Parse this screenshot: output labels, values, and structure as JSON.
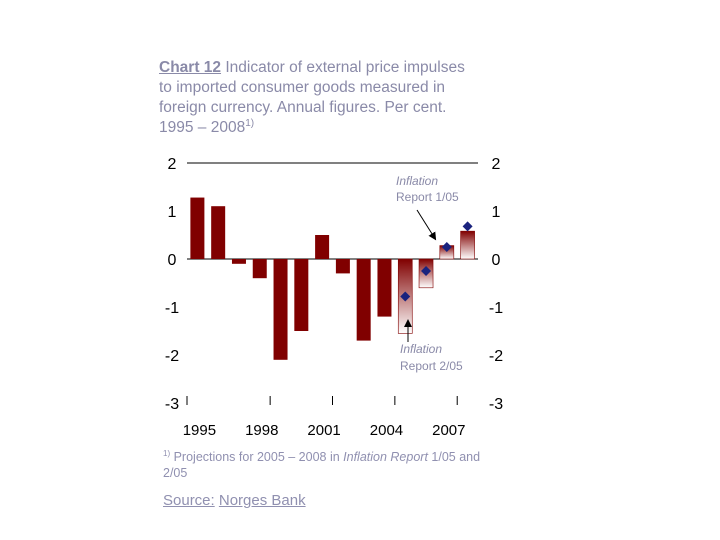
{
  "chart_data": {
    "type": "bar",
    "title_number": "Chart 12",
    "title": "Indicator of external price impulses to imported consumer goods measured in foreign currency. Annual figures. Per cent. 1995 – 2008",
    "title_footnote_mark": "1)",
    "years": [
      1995,
      1996,
      1997,
      1998,
      1999,
      2000,
      2001,
      2002,
      2003,
      2004,
      2005,
      2006,
      2007,
      2008
    ],
    "values": [
      1.28,
      1.1,
      -0.1,
      -0.4,
      -2.1,
      -1.5,
      0.5,
      -0.3,
      -1.7,
      -1.2,
      -1.55,
      -0.6,
      0.28,
      0.58
    ],
    "projection_years": [
      2005,
      2006,
      2007,
      2008
    ],
    "projections_ir_1_05_label": "Inflation Report 1/05",
    "projections_ir_1_05": [
      2007,
      0.25,
      2008,
      0.68
    ],
    "projections_ir_2_05_label": "Inflation Report 2/05",
    "projections_ir_2_05": [
      2005,
      -0.78,
      2006,
      -0.25
    ],
    "ylim": [
      -3,
      2
    ],
    "yticks": [
      "2",
      "1",
      "0",
      "-1",
      "-2",
      "-3"
    ],
    "xticks": [
      "1995",
      "1998",
      "2001",
      "2004",
      "2007"
    ],
    "bar_color": "#800000",
    "marker_color": "#1a237e",
    "annotation_top": {
      "line1": "Inflation",
      "line2": "Report 1/05"
    },
    "annotation_bottom": {
      "line1": "Inflation",
      "line2": "Report 2/05"
    }
  },
  "footnote": {
    "mark": "1)",
    "text_before": " Projections for 2005 – 2008 in ",
    "italic1": "Inflation Report",
    "text_mid": " 1/05 and 2/05"
  },
  "source": {
    "label": "Source:",
    "value": "Norges Bank"
  }
}
